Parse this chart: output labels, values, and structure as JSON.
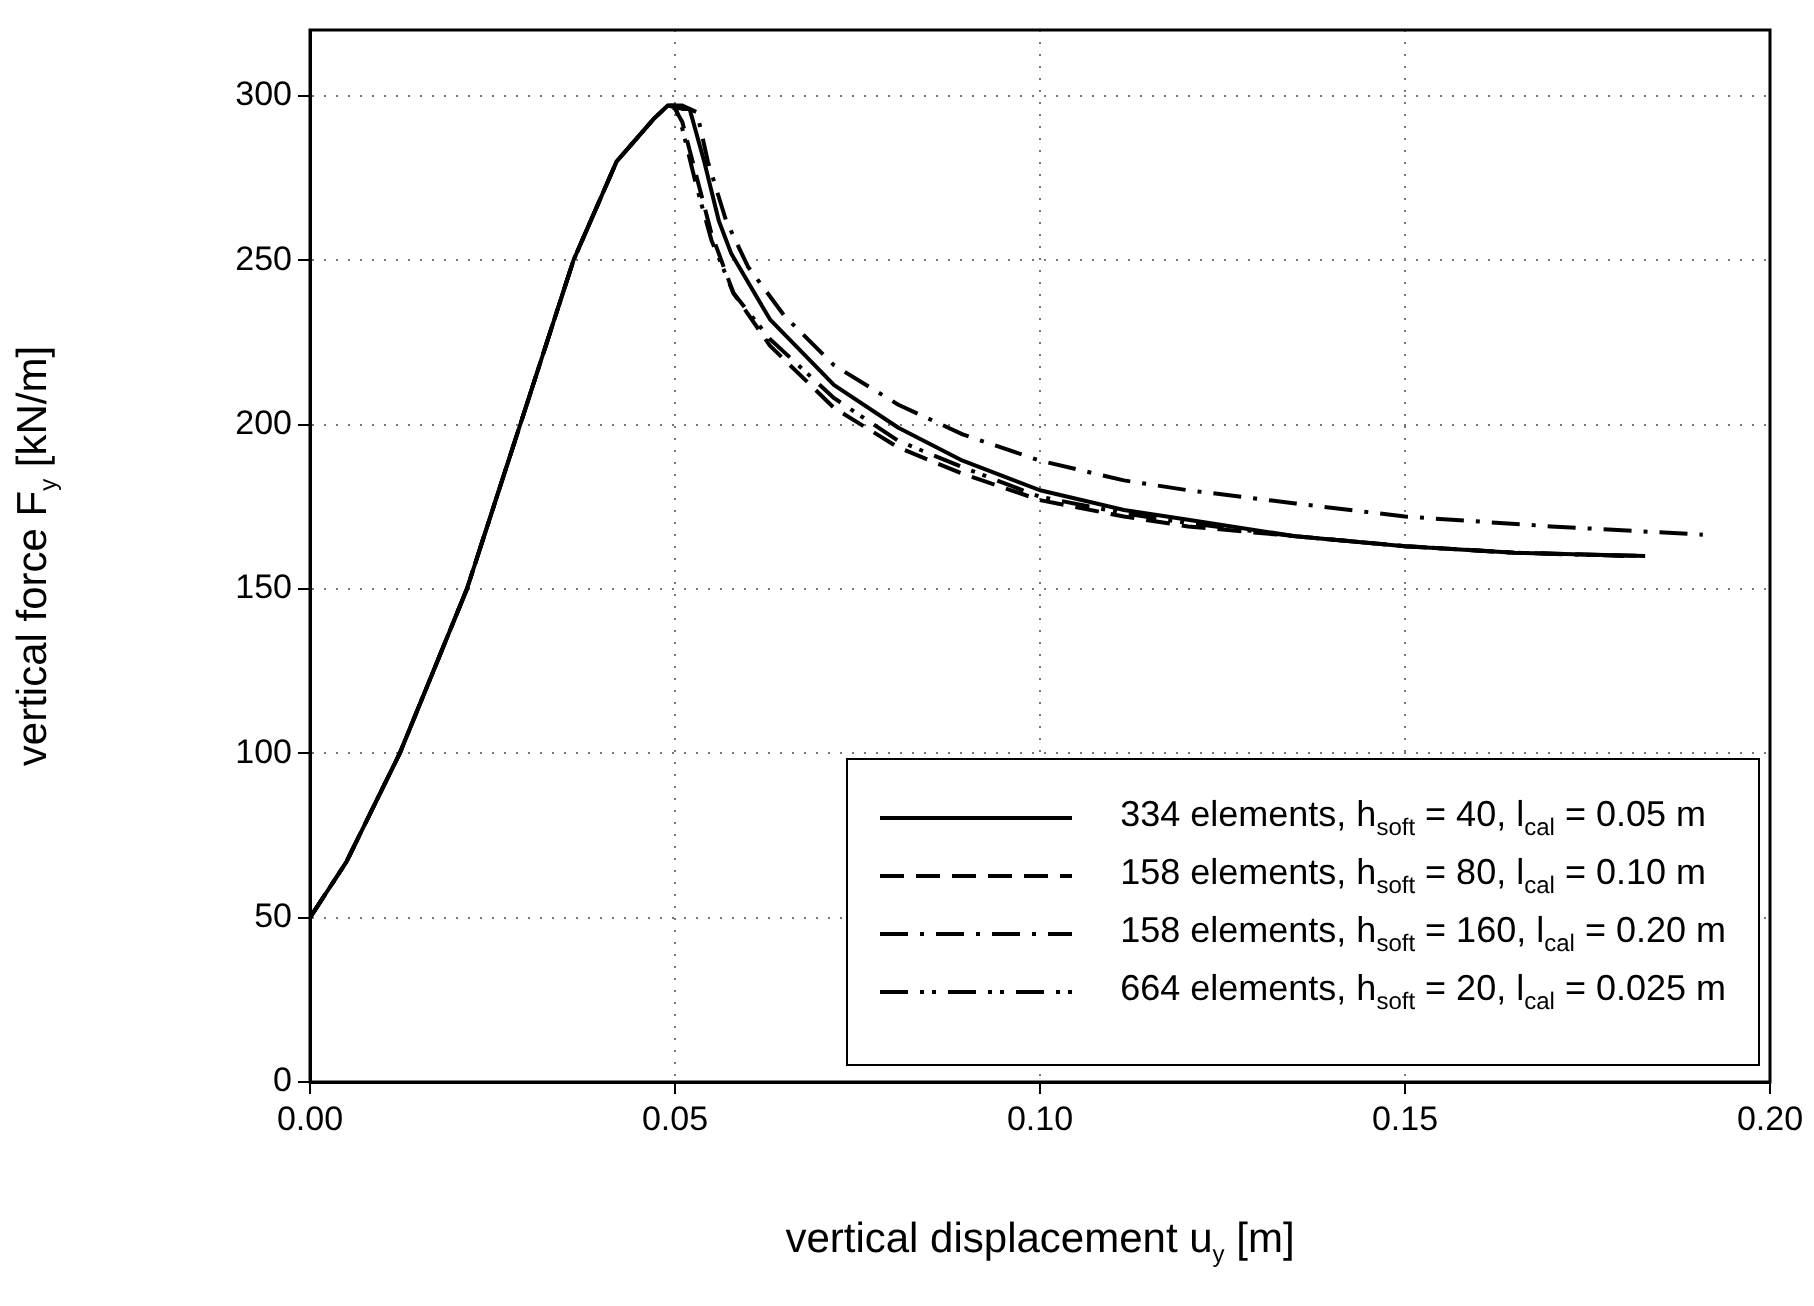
{
  "chart_data": {
    "type": "line",
    "xlabel": "vertical displacement u$_{y}$  [m]",
    "ylabel": "vertical force F$_{y}$  [kN/m]",
    "xlim": [
      0,
      0.2
    ],
    "xticks": [
      {
        "value": 0,
        "label": "0.00"
      },
      {
        "value": 0.05,
        "label": "0.05"
      },
      {
        "value": 0.1,
        "label": "0.10"
      },
      {
        "value": 0.15,
        "label": "0.15"
      },
      {
        "value": 0.2,
        "label": "0.20"
      }
    ],
    "ylim": [
      0,
      320
    ],
    "yticks": [
      0,
      50,
      100,
      150,
      200,
      250,
      300
    ],
    "grid": true,
    "legend": "bottom right",
    "marker": "none",
    "series": [
      {
        "name": "334 elements, h$_{soft}$ = 40, l$_{cal}$ = 0.05 m",
        "color": "#000000",
        "line_style": "solid",
        "x": [
          0,
          0.005,
          0.0123,
          0.0215,
          0.0288,
          0.0361,
          0.042,
          0.0471,
          0.049,
          0.051,
          0.052,
          0.054,
          0.056,
          0.0577,
          0.063,
          0.0718,
          0.0806,
          0.0894,
          0.1,
          0.1115,
          0.1203,
          0.135,
          0.15,
          0.165,
          0.1829
        ],
        "values": [
          50,
          67,
          100,
          150,
          200,
          250,
          280,
          293,
          297,
          296,
          296,
          280,
          262,
          252,
          232,
          212,
          199,
          189,
          180,
          174,
          171,
          166,
          163,
          161,
          160
        ]
      },
      {
        "name": "158 elements, h$_{soft}$ = 80, l$_{cal}$ = 0.10 m",
        "color": "#000000",
        "line_style": "dashed",
        "x": [
          0,
          0.005,
          0.0123,
          0.0215,
          0.0288,
          0.0361,
          0.042,
          0.0471,
          0.049,
          0.05,
          0.051,
          0.053,
          0.055,
          0.058,
          0.063,
          0.0718,
          0.0806,
          0.0894,
          0.1,
          0.1115,
          0.1203,
          0.135,
          0.15,
          0.165,
          0.1829
        ],
        "values": [
          50,
          67,
          100,
          150,
          200,
          250,
          280,
          293,
          297,
          296,
          292,
          275,
          258,
          240,
          224,
          205,
          193,
          185,
          177,
          172,
          169,
          166,
          163,
          161,
          160
        ]
      },
      {
        "name": "158 elements, h$_{soft}$ = 160, l$_{cal}$ = 0.20 m",
        "color": "#000000",
        "line_style": "dashdot",
        "x": [
          0,
          0.005,
          0.0123,
          0.0215,
          0.0288,
          0.0361,
          0.042,
          0.0471,
          0.049,
          0.051,
          0.053,
          0.0545,
          0.057,
          0.06,
          0.065,
          0.0718,
          0.0806,
          0.0894,
          0.1,
          0.1115,
          0.1203,
          0.135,
          0.15,
          0.17,
          0.1908
        ],
        "values": [
          50,
          67,
          100,
          150,
          200,
          250,
          280,
          293,
          297,
          297,
          295,
          280,
          262,
          248,
          233,
          218,
          206,
          197,
          189,
          183,
          180,
          176,
          172,
          169,
          166.5
        ]
      },
      {
        "name": "664 elements, h$_{soft}$ = 20, l$_{cal}$ = 0.025 m",
        "color": "#000000",
        "line_style": "dashdotdot",
        "x": [
          0,
          0.005,
          0.0123,
          0.0215,
          0.0288,
          0.0361,
          0.042,
          0.0471,
          0.049,
          0.05,
          0.051,
          0.053,
          0.055,
          0.058,
          0.063,
          0.0718,
          0.0806,
          0.0894,
          0.1,
          0.1115,
          0.1203,
          0.135,
          0.15,
          0.165,
          0.18
        ],
        "values": [
          50,
          67,
          100,
          150,
          200,
          250,
          280,
          293,
          297,
          297,
          290,
          272,
          256,
          240,
          226,
          208,
          195,
          187,
          178,
          173,
          170,
          166,
          163,
          161,
          160
        ]
      }
    ]
  }
}
